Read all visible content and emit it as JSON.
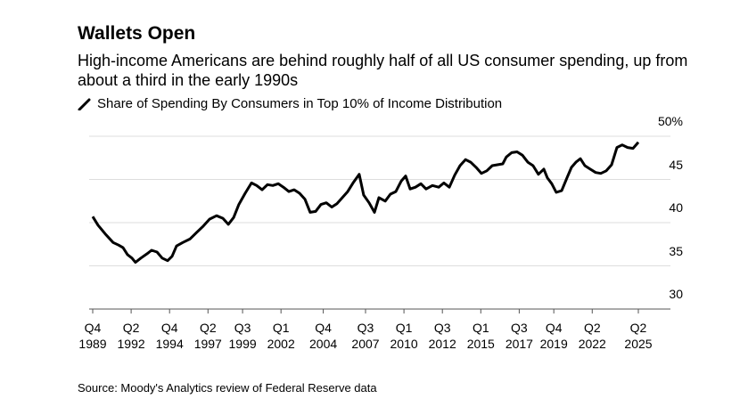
{
  "chart_data": {
    "type": "line",
    "title": "Wallets Open",
    "subtitle": "High-income Americans are behind roughly half of all US consumer spending, up from about a third in the early 1990s",
    "source": "Source: Moody's Analytics review of Federal Reserve data",
    "x": [
      1989.75,
      1990.1,
      1990.56,
      1991.08,
      1991.43,
      1991.72,
      1992.01,
      1992.3,
      1992.53,
      1992.88,
      1993.29,
      1993.58,
      1993.93,
      1994.27,
      1994.62,
      1994.91,
      1995.2,
      1995.61,
      1996.07,
      1996.48,
      1996.94,
      1997.35,
      1997.81,
      1998.22,
      1998.57,
      1998.92,
      1999.26,
      1999.67,
      2000.08,
      2000.42,
      2000.77,
      2001.12,
      2001.47,
      2001.82,
      2002.16,
      2002.51,
      2002.86,
      2003.21,
      2003.56,
      2003.9,
      2004.25,
      2004.6,
      2004.95,
      2005.3,
      2005.64,
      2005.99,
      2006.34,
      2006.69,
      2007.09,
      2007.38,
      2007.73,
      2008.08,
      2008.37,
      2008.78,
      2009.12,
      2009.47,
      2009.82,
      2010.11,
      2010.4,
      2010.75,
      2011.1,
      2011.44,
      2011.85,
      2012.26,
      2012.6,
      2012.95,
      2013.3,
      2013.65,
      2014.0,
      2014.34,
      2014.69,
      2015.04,
      2015.39,
      2015.74,
      2016.08,
      2016.43,
      2016.66,
      2017.01,
      2017.36,
      2017.71,
      2018.06,
      2018.4,
      2018.75,
      2019.1,
      2019.33,
      2019.62,
      2019.91,
      2020.26,
      2020.61,
      2020.9,
      2021.19,
      2021.48,
      2021.77,
      2022.12,
      2022.47,
      2022.81,
      2023.16,
      2023.51,
      2023.86,
      2024.2,
      2024.55,
      2024.9,
      2025.25
    ],
    "series": [
      {
        "name": "Share of Spending By Consumers in Top 10% of Income Distribution",
        "color": "#000000",
        "values": [
          40.7,
          39.7,
          38.7,
          37.7,
          37.4,
          37.1,
          36.3,
          35.9,
          35.4,
          35.9,
          36.4,
          36.8,
          36.6,
          35.9,
          35.6,
          36.1,
          37.3,
          37.7,
          38.1,
          38.8,
          39.6,
          40.4,
          40.8,
          40.5,
          39.8,
          40.6,
          42.1,
          43.4,
          44.6,
          44.3,
          43.8,
          44.4,
          44.3,
          44.5,
          44.1,
          43.6,
          43.8,
          43.4,
          42.7,
          41.2,
          41.3,
          42.1,
          42.3,
          41.8,
          42.2,
          42.9,
          43.6,
          44.6,
          45.6,
          43.2,
          42.3,
          41.2,
          42.9,
          42.5,
          43.3,
          43.6,
          44.8,
          45.4,
          43.9,
          44.1,
          44.5,
          43.9,
          44.3,
          44.1,
          44.6,
          44.1,
          45.5,
          46.6,
          47.3,
          47.0,
          46.4,
          45.7,
          46.0,
          46.6,
          46.7,
          46.8,
          47.6,
          48.1,
          48.2,
          47.8,
          47.0,
          46.6,
          45.6,
          46.2,
          45.2,
          44.5,
          43.5,
          43.7,
          45.2,
          46.4,
          47.0,
          47.4,
          46.6,
          46.2,
          45.8,
          45.7,
          46.0,
          46.7,
          48.7,
          49.0,
          48.7,
          48.6,
          49.3
        ]
      }
    ],
    "xlim": [
      1989.75,
      2025.25
    ],
    "xticks": [
      {
        "value": 1989.75,
        "label": "Q4 1989"
      },
      {
        "value": 1992.25,
        "label": "Q2 1992"
      },
      {
        "value": 1994.75,
        "label": "Q4 1994"
      },
      {
        "value": 1997.25,
        "label": "Q2 1997"
      },
      {
        "value": 1999.5,
        "label": "Q3 1999"
      },
      {
        "value": 2002.0,
        "label": "Q1 2002"
      },
      {
        "value": 2004.75,
        "label": "Q4 2004"
      },
      {
        "value": 2007.5,
        "label": "Q3 2007"
      },
      {
        "value": 2010.0,
        "label": "Q1 2010"
      },
      {
        "value": 2012.5,
        "label": "Q3 2012"
      },
      {
        "value": 2015.0,
        "label": "Q1 2015"
      },
      {
        "value": 2017.5,
        "label": "Q3 2017"
      },
      {
        "value": 2019.75,
        "label": "Q4 2019"
      },
      {
        "value": 2022.25,
        "label": "Q2 2022"
      },
      {
        "value": 2025.25,
        "label": "Q2 2025"
      }
    ],
    "ylim": [
      30,
      50
    ],
    "yticks": [
      30,
      35,
      40,
      45,
      {
        "value": 50,
        "label": "50%"
      }
    ],
    "grid": true
  }
}
